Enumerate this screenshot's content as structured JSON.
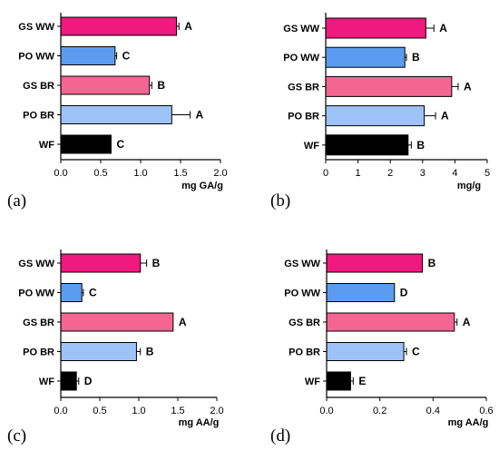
{
  "chart_data": [
    {
      "type": "bar",
      "orientation": "horizontal",
      "panel_label": "(a)",
      "categories": [
        "GS WW",
        "PO WW",
        "GS BR",
        "PO BR",
        "WF"
      ],
      "values": [
        1.45,
        0.68,
        1.11,
        1.39,
        0.63
      ],
      "errors": [
        0.03,
        0.02,
        0.03,
        0.23,
        0.0
      ],
      "letters": [
        "A",
        "C",
        "B",
        "A",
        "C"
      ],
      "colors": [
        "#F0197D",
        "#5B9CF0",
        "#F56593",
        "#9DC3F6",
        "#000000"
      ],
      "xlabel": "mg GA/g",
      "xlim": [
        0,
        2.0
      ],
      "xticks": [
        "0.0",
        "0.5",
        "1.0",
        "1.5",
        "2.0"
      ]
    },
    {
      "type": "bar",
      "orientation": "horizontal",
      "panel_label": "(b)",
      "categories": [
        "GS WW",
        "PO WW",
        "GS BR",
        "PO BR",
        "WF"
      ],
      "values": [
        3.1,
        2.45,
        3.9,
        3.05,
        2.55
      ],
      "errors": [
        0.25,
        0.05,
        0.2,
        0.35,
        0.1
      ],
      "letters": [
        "A",
        "B",
        "A",
        "A",
        "B"
      ],
      "colors": [
        "#F0197D",
        "#5B9CF0",
        "#F56593",
        "#9DC3F6",
        "#000000"
      ],
      "xlabel": "mg/g",
      "xlim": [
        0,
        5
      ],
      "xticks": [
        "0",
        "1",
        "2",
        "3",
        "4",
        "5"
      ]
    },
    {
      "type": "bar",
      "orientation": "horizontal",
      "panel_label": "(c)",
      "categories": [
        "GS WW",
        "PO WW",
        "GS BR",
        "PO BR",
        "WF"
      ],
      "values": [
        1.02,
        0.27,
        1.44,
        0.97,
        0.2
      ],
      "errors": [
        0.08,
        0.02,
        0.0,
        0.05,
        0.03
      ],
      "letters": [
        "B",
        "C",
        "A",
        "B",
        "D"
      ],
      "colors": [
        "#F0197D",
        "#5B9CF0",
        "#F56593",
        "#9DC3F6",
        "#000000"
      ],
      "xlabel": "mg AA/g",
      "xlim": [
        0,
        2.0
      ],
      "xticks": [
        "0.0",
        "0.5",
        "1.0",
        "1.5",
        "2.0"
      ]
    },
    {
      "type": "bar",
      "orientation": "horizontal",
      "panel_label": "(d)",
      "categories": [
        "GS WW",
        "PO WW",
        "GS BR",
        "PO BR",
        "WF"
      ],
      "values": [
        0.36,
        0.255,
        0.48,
        0.29,
        0.09
      ],
      "errors": [
        0.0,
        0.0,
        0.01,
        0.01,
        0.01
      ],
      "letters": [
        "B",
        "D",
        "A",
        "C",
        "E"
      ],
      "colors": [
        "#F0197D",
        "#5B9CF0",
        "#F56593",
        "#9DC3F6",
        "#000000"
      ],
      "xlabel": "mg AA/g",
      "xlim": [
        0,
        0.6
      ],
      "xticks": [
        "0.0",
        "0.2",
        "0.4",
        "0.6"
      ]
    }
  ]
}
